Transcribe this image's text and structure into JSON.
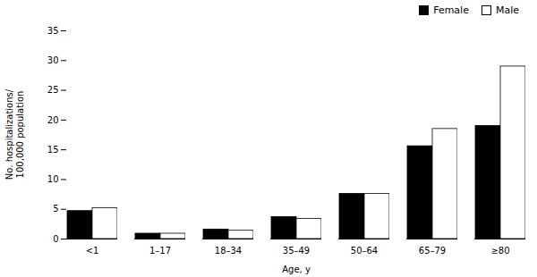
{
  "chart_data": {
    "type": "bar",
    "categories": [
      "<1",
      "1–17",
      "18–34",
      "35–49",
      "50–64",
      "65–79",
      "≥80"
    ],
    "series": [
      {
        "name": "Female",
        "color": "#000000",
        "values": [
          4.7,
          0.9,
          1.6,
          3.7,
          7.6,
          15.6,
          19.0
        ]
      },
      {
        "name": "Male",
        "color": "#ffffff",
        "values": [
          5.2,
          0.9,
          1.4,
          3.4,
          7.6,
          18.5,
          29.0
        ]
      }
    ],
    "xlabel": "Age, y",
    "ylabel": "No. hospitalizations/\n100,000 population",
    "ylim": [
      0,
      35
    ],
    "yticks": [
      0,
      5,
      10,
      15,
      20,
      25,
      30,
      35
    ],
    "legend": "upper right",
    "grid": false
  }
}
